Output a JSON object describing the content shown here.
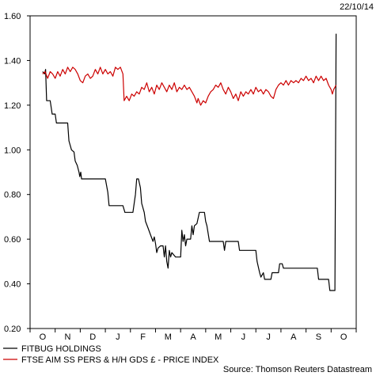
{
  "chart_data": {
    "type": "line",
    "date_label": "22/10/14",
    "source": "Source: Thomson Reuters Datastream",
    "ylim": [
      0.2,
      1.6
    ],
    "y_ticks": [
      "0.20",
      "0.40",
      "0.60",
      "0.80",
      "1.00",
      "1.20",
      "1.40",
      "1.60"
    ],
    "x_categories": [
      "O",
      "N",
      "D",
      "J",
      "F",
      "M",
      "A",
      "M",
      "J",
      "J",
      "A",
      "S",
      "O"
    ],
    "legend_position": "bottom-left",
    "grid": false,
    "series": [
      {
        "name": "FITBUG HOLDINGS",
        "color": "#000000",
        "points": [
          [
            0.0,
            1.35
          ],
          [
            0.08,
            1.34
          ],
          [
            0.12,
            1.36
          ],
          [
            0.16,
            1.22
          ],
          [
            0.3,
            1.22
          ],
          [
            0.38,
            1.16
          ],
          [
            0.5,
            1.16
          ],
          [
            0.55,
            1.12
          ],
          [
            0.7,
            1.12
          ],
          [
            1.0,
            1.12
          ],
          [
            1.05,
            1.04
          ],
          [
            1.15,
            1.0
          ],
          [
            1.25,
            0.99
          ],
          [
            1.3,
            0.95
          ],
          [
            1.38,
            0.93
          ],
          [
            1.45,
            0.9
          ],
          [
            1.48,
            0.88
          ],
          [
            1.52,
            0.9
          ],
          [
            1.55,
            0.87
          ],
          [
            2.0,
            0.87
          ],
          [
            2.5,
            0.87
          ],
          [
            2.6,
            0.81
          ],
          [
            2.65,
            0.75
          ],
          [
            3.0,
            0.75
          ],
          [
            3.2,
            0.75
          ],
          [
            3.28,
            0.72
          ],
          [
            3.6,
            0.72
          ],
          [
            3.7,
            0.8
          ],
          [
            3.75,
            0.87
          ],
          [
            3.82,
            0.87
          ],
          [
            3.9,
            0.83
          ],
          [
            3.95,
            0.76
          ],
          [
            4.05,
            0.72
          ],
          [
            4.1,
            0.68
          ],
          [
            4.2,
            0.65
          ],
          [
            4.3,
            0.62
          ],
          [
            4.4,
            0.59
          ],
          [
            4.45,
            0.61
          ],
          [
            4.5,
            0.58
          ],
          [
            4.55,
            0.54
          ],
          [
            4.6,
            0.56
          ],
          [
            4.7,
            0.57
          ],
          [
            4.8,
            0.57
          ],
          [
            4.85,
            0.52
          ],
          [
            4.9,
            0.57
          ],
          [
            4.95,
            0.5
          ],
          [
            5.0,
            0.47
          ],
          [
            5.05,
            0.55
          ],
          [
            5.1,
            0.52
          ],
          [
            5.15,
            0.54
          ],
          [
            5.3,
            0.52
          ],
          [
            5.5,
            0.52
          ],
          [
            5.55,
            0.64
          ],
          [
            5.6,
            0.59
          ],
          [
            5.65,
            0.62
          ],
          [
            5.7,
            0.57
          ],
          [
            5.75,
            0.6
          ],
          [
            5.9,
            0.6
          ],
          [
            5.95,
            0.66
          ],
          [
            6.0,
            0.62
          ],
          [
            6.05,
            0.66
          ],
          [
            6.15,
            0.67
          ],
          [
            6.25,
            0.72
          ],
          [
            6.45,
            0.72
          ],
          [
            6.5,
            0.68
          ],
          [
            6.55,
            0.66
          ],
          [
            6.65,
            0.59
          ],
          [
            6.8,
            0.59
          ],
          [
            7.2,
            0.59
          ],
          [
            7.25,
            0.55
          ],
          [
            7.3,
            0.59
          ],
          [
            7.5,
            0.59
          ],
          [
            7.8,
            0.59
          ],
          [
            7.85,
            0.55
          ],
          [
            8.3,
            0.55
          ],
          [
            8.5,
            0.55
          ],
          [
            8.55,
            0.5
          ],
          [
            8.65,
            0.45
          ],
          [
            8.7,
            0.43
          ],
          [
            8.8,
            0.45
          ],
          [
            8.85,
            0.42
          ],
          [
            9.1,
            0.42
          ],
          [
            9.15,
            0.45
          ],
          [
            9.4,
            0.45
          ],
          [
            9.45,
            0.49
          ],
          [
            9.55,
            0.49
          ],
          [
            9.6,
            0.47
          ],
          [
            10.0,
            0.47
          ],
          [
            10.6,
            0.47
          ],
          [
            10.95,
            0.47
          ],
          [
            11.0,
            0.42
          ],
          [
            11.4,
            0.42
          ],
          [
            11.45,
            0.37
          ],
          [
            11.65,
            0.37
          ],
          [
            11.7,
            1.52
          ]
        ]
      },
      {
        "name": "FTSE AIM SS PERS & H/H GDS £ - PRICE INDEX",
        "color": "#cc0000",
        "points": [
          [
            0.0,
            1.34
          ],
          [
            0.1,
            1.35
          ],
          [
            0.2,
            1.32
          ],
          [
            0.3,
            1.35
          ],
          [
            0.4,
            1.34
          ],
          [
            0.5,
            1.32
          ],
          [
            0.6,
            1.35
          ],
          [
            0.7,
            1.33
          ],
          [
            0.8,
            1.36
          ],
          [
            0.9,
            1.34
          ],
          [
            1.0,
            1.37
          ],
          [
            1.1,
            1.35
          ],
          [
            1.2,
            1.37
          ],
          [
            1.3,
            1.36
          ],
          [
            1.4,
            1.34
          ],
          [
            1.5,
            1.31
          ],
          [
            1.6,
            1.3
          ],
          [
            1.7,
            1.33
          ],
          [
            1.8,
            1.34
          ],
          [
            1.9,
            1.32
          ],
          [
            2.0,
            1.33
          ],
          [
            2.1,
            1.36
          ],
          [
            2.2,
            1.34
          ],
          [
            2.3,
            1.37
          ],
          [
            2.4,
            1.34
          ],
          [
            2.5,
            1.36
          ],
          [
            2.6,
            1.34
          ],
          [
            2.7,
            1.35
          ],
          [
            2.8,
            1.33
          ],
          [
            2.9,
            1.37
          ],
          [
            3.0,
            1.36
          ],
          [
            3.1,
            1.37
          ],
          [
            3.2,
            1.34
          ],
          [
            3.25,
            1.22
          ],
          [
            3.35,
            1.24
          ],
          [
            3.45,
            1.22
          ],
          [
            3.55,
            1.25
          ],
          [
            3.65,
            1.24
          ],
          [
            3.75,
            1.26
          ],
          [
            3.85,
            1.25
          ],
          [
            3.95,
            1.28
          ],
          [
            4.05,
            1.27
          ],
          [
            4.15,
            1.3
          ],
          [
            4.25,
            1.26
          ],
          [
            4.35,
            1.28
          ],
          [
            4.45,
            1.25
          ],
          [
            4.55,
            1.29
          ],
          [
            4.65,
            1.27
          ],
          [
            4.75,
            1.3
          ],
          [
            4.85,
            1.28
          ],
          [
            4.95,
            1.26
          ],
          [
            5.05,
            1.29
          ],
          [
            5.15,
            1.27
          ],
          [
            5.25,
            1.3
          ],
          [
            5.35,
            1.26
          ],
          [
            5.45,
            1.28
          ],
          [
            5.55,
            1.27
          ],
          [
            5.65,
            1.29
          ],
          [
            5.75,
            1.27
          ],
          [
            5.85,
            1.28
          ],
          [
            5.95,
            1.26
          ],
          [
            6.05,
            1.24
          ],
          [
            6.15,
            1.21
          ],
          [
            6.2,
            1.23
          ],
          [
            6.3,
            1.2
          ],
          [
            6.4,
            1.22
          ],
          [
            6.5,
            1.21
          ],
          [
            6.6,
            1.24
          ],
          [
            6.7,
            1.26
          ],
          [
            6.8,
            1.27
          ],
          [
            6.9,
            1.29
          ],
          [
            7.0,
            1.28
          ],
          [
            7.1,
            1.3
          ],
          [
            7.2,
            1.27
          ],
          [
            7.3,
            1.25
          ],
          [
            7.4,
            1.28
          ],
          [
            7.5,
            1.26
          ],
          [
            7.6,
            1.23
          ],
          [
            7.7,
            1.25
          ],
          [
            7.8,
            1.22
          ],
          [
            7.9,
            1.26
          ],
          [
            8.0,
            1.24
          ],
          [
            8.1,
            1.26
          ],
          [
            8.2,
            1.25
          ],
          [
            8.3,
            1.27
          ],
          [
            8.4,
            1.25
          ],
          [
            8.5,
            1.28
          ],
          [
            8.6,
            1.26
          ],
          [
            8.7,
            1.27
          ],
          [
            8.8,
            1.25
          ],
          [
            8.9,
            1.27
          ],
          [
            9.0,
            1.26
          ],
          [
            9.1,
            1.24
          ],
          [
            9.2,
            1.23
          ],
          [
            9.3,
            1.27
          ],
          [
            9.4,
            1.29
          ],
          [
            9.5,
            1.3
          ],
          [
            9.6,
            1.29
          ],
          [
            9.7,
            1.31
          ],
          [
            9.8,
            1.29
          ],
          [
            9.9,
            1.31
          ],
          [
            10.0,
            1.3
          ],
          [
            10.1,
            1.31
          ],
          [
            10.2,
            1.3
          ],
          [
            10.3,
            1.32
          ],
          [
            10.4,
            1.31
          ],
          [
            10.5,
            1.33
          ],
          [
            10.6,
            1.31
          ],
          [
            10.7,
            1.32
          ],
          [
            10.8,
            1.3
          ],
          [
            10.9,
            1.33
          ],
          [
            11.0,
            1.31
          ],
          [
            11.1,
            1.33
          ],
          [
            11.2,
            1.31
          ],
          [
            11.3,
            1.32
          ],
          [
            11.4,
            1.29
          ],
          [
            11.5,
            1.27
          ],
          [
            11.55,
            1.25
          ],
          [
            11.6,
            1.27
          ],
          [
            11.7,
            1.29
          ]
        ]
      }
    ]
  }
}
